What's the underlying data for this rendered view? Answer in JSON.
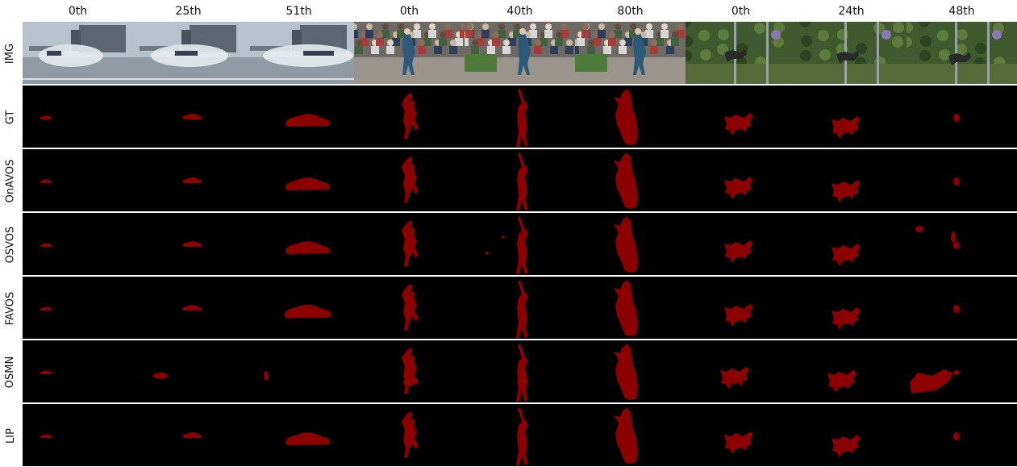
{
  "columns": [
    "0th",
    "25th",
    "51th",
    "0th",
    "40th",
    "80th",
    "0th",
    "24th",
    "48th"
  ],
  "rows": [
    "IMG",
    "GT",
    "OnAVOS",
    "OSVOS",
    "FAVOS",
    "OSMN",
    "LIP"
  ],
  "colors": {
    "mask": "#8b0000",
    "background": "#000000",
    "separator": "#ffffff"
  },
  "image_scenes": [
    "drift-car-smoke",
    "drift-car-smoke",
    "drift-car-smoke",
    "street-dancer-crowd",
    "street-dancer-crowd",
    "street-dancer-crowd",
    "dog-in-garden",
    "dog-in-garden",
    "dog-in-garden"
  ]
}
